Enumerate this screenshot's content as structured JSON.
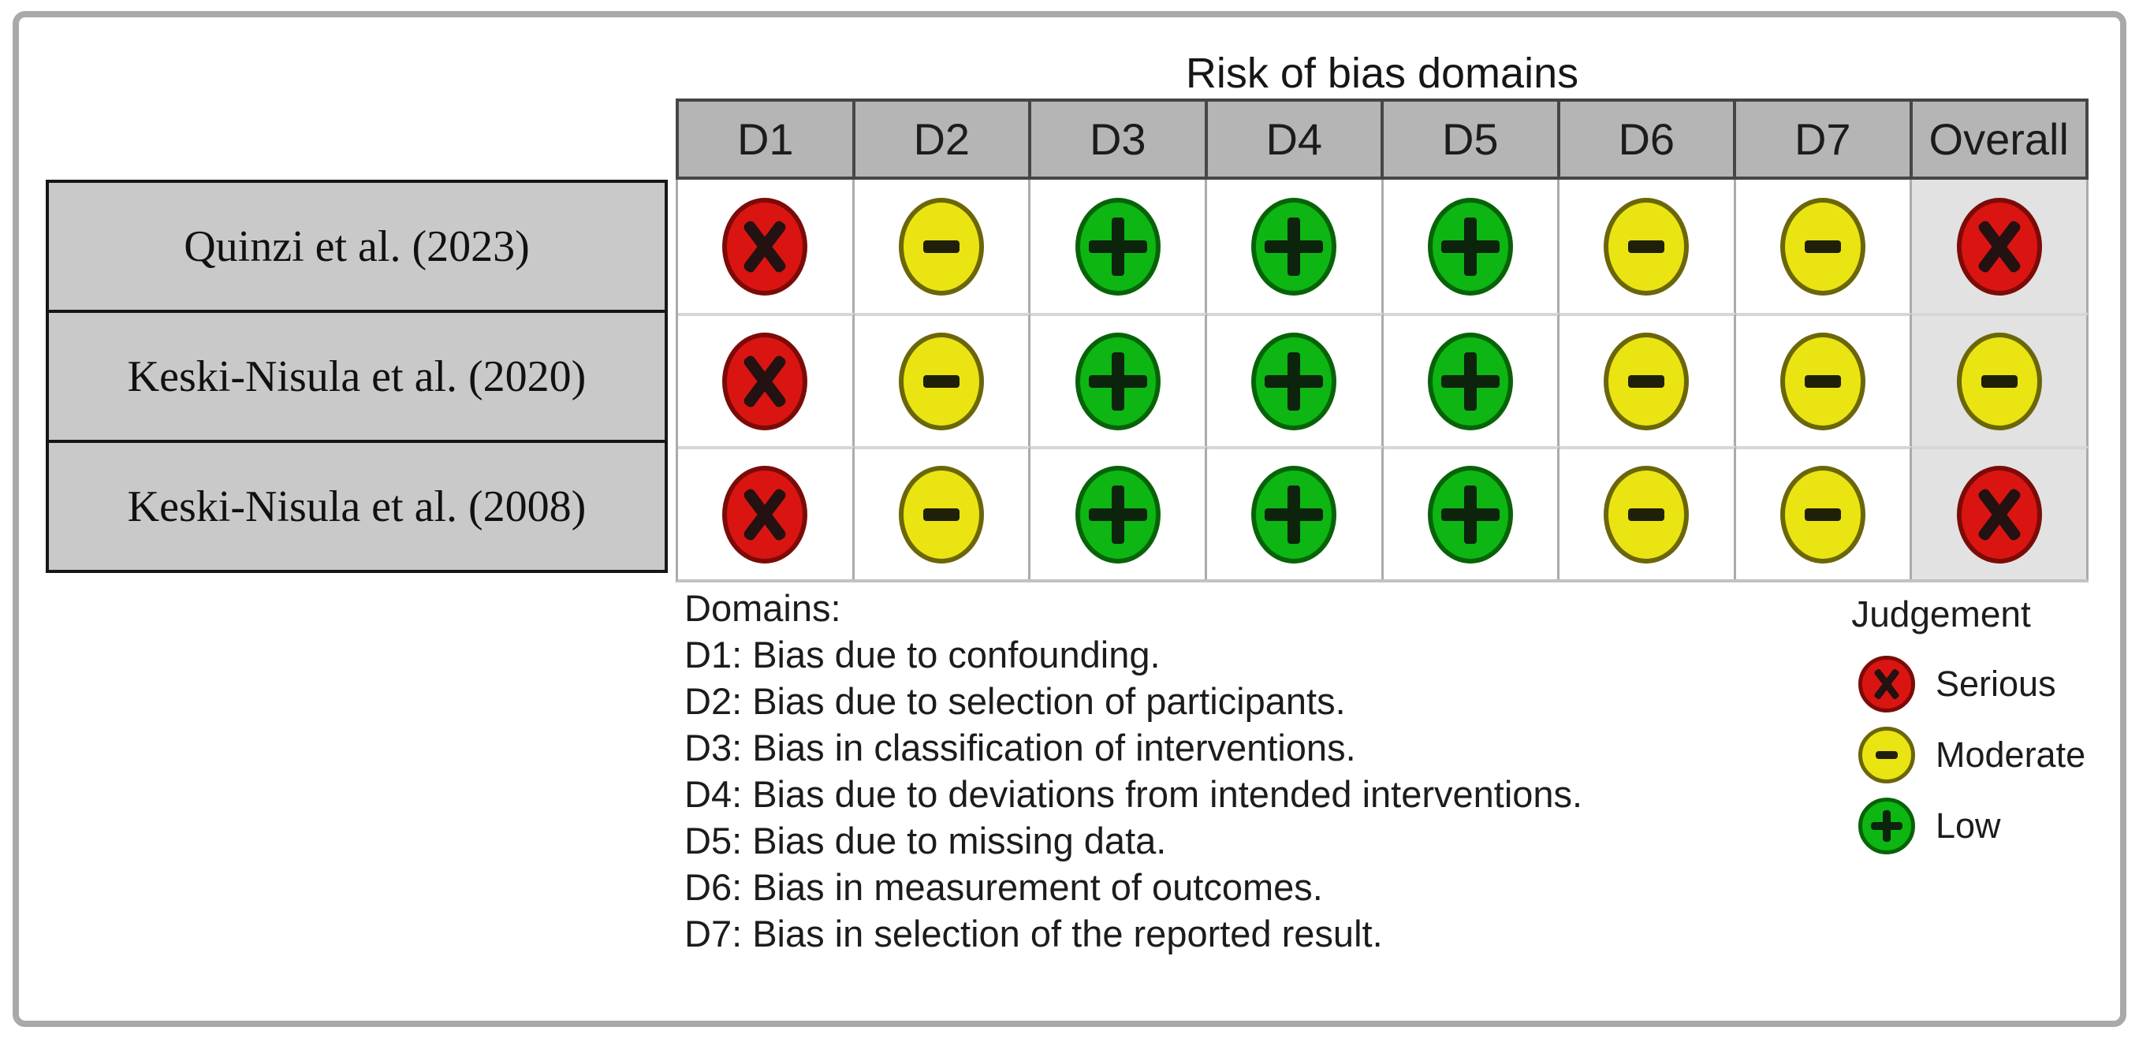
{
  "chart_data": {
    "type": "table",
    "title": "Risk of bias domains",
    "columns": [
      "D1",
      "D2",
      "D3",
      "D4",
      "D5",
      "D6",
      "D7",
      "Overall"
    ],
    "rows": [
      {
        "study": "Quinzi et al. (2023)",
        "judgements": [
          "Serious",
          "Moderate",
          "Low",
          "Low",
          "Low",
          "Moderate",
          "Moderate",
          "Serious"
        ]
      },
      {
        "study": "Keski-Nisula et al. (2020)",
        "judgements": [
          "Serious",
          "Moderate",
          "Low",
          "Low",
          "Low",
          "Moderate",
          "Moderate",
          "Moderate"
        ]
      },
      {
        "study": "Keski-Nisula et al. (2008)",
        "judgements": [
          "Serious",
          "Moderate",
          "Low",
          "Low",
          "Low",
          "Moderate",
          "Moderate",
          "Serious"
        ]
      }
    ],
    "judgement_symbols": {
      "Serious": "X",
      "Moderate": "-",
      "Low": "+"
    },
    "judgement_colors": {
      "Serious": "#da1511",
      "Moderate": "#eae412",
      "Low": "#0db613"
    },
    "legend_position": "bottom-right",
    "grid": "on"
  },
  "figure": {
    "title": "Risk of bias domains",
    "domains_legend": [
      "Domains:",
      "D1: Bias due to confounding.",
      "D2: Bias due to selection of participants.",
      "D3: Bias in classification of interventions.",
      "D4: Bias due to deviations from intended interventions.",
      "D5: Bias due to missing data.",
      "D6: Bias in measurement of outcomes.",
      "D7: Bias in selection of the reported result."
    ],
    "judgement_legend": {
      "title": "Judgement",
      "items": [
        {
          "label": "Serious",
          "judgement": "Serious"
        },
        {
          "label": "Moderate",
          "judgement": "Moderate"
        },
        {
          "label": "Low",
          "judgement": "Low"
        }
      ]
    },
    "colors": {
      "frame": "#a9a9a9",
      "header_bg": "#b5b5b5",
      "header_border": "#464646",
      "label_bg": "#c9c9c9",
      "label_border": "#161616",
      "grid_line": "#ababab",
      "row_line": "#d6d6d6",
      "overall_bg": "#e2e2e2",
      "serious_fill": "#da1511",
      "serious_border": "#7c0b08",
      "moderate_fill": "#eae412",
      "moderate_border": "#6b6607",
      "low_fill": "#0db613",
      "low_border": "#076307"
    }
  }
}
